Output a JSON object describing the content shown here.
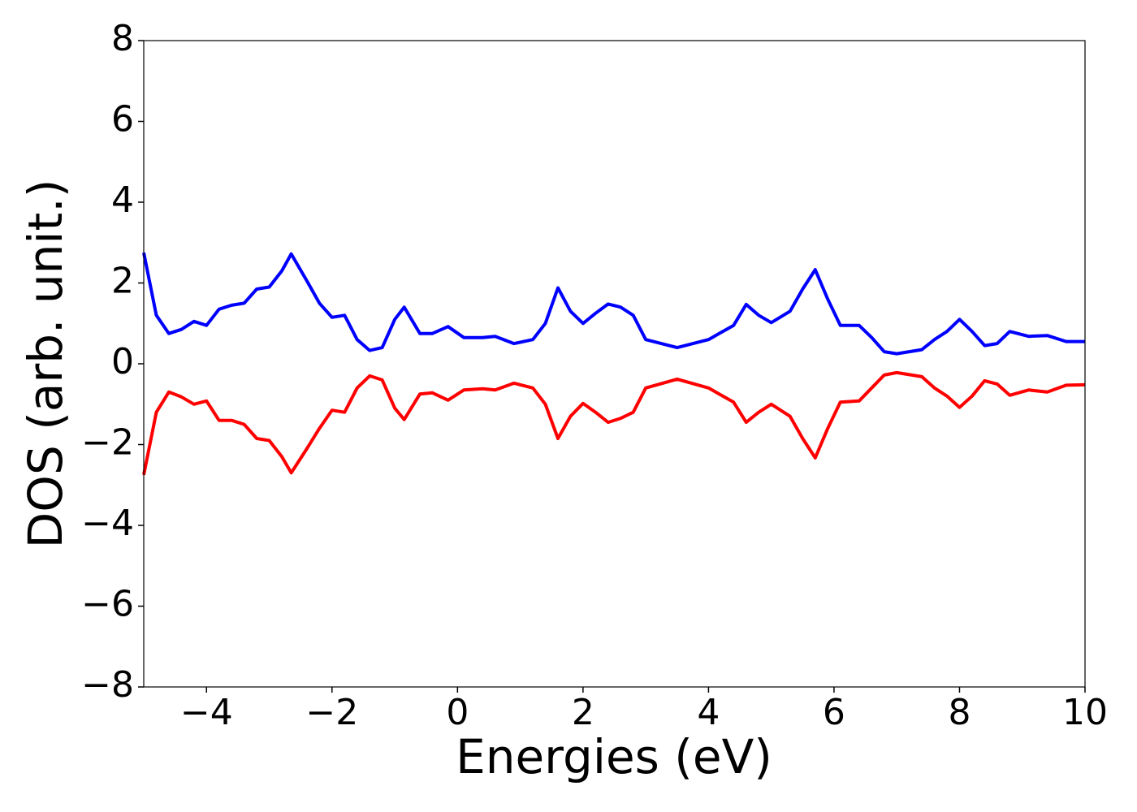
{
  "chart_data": {
    "type": "line",
    "x_label": "Energies (eV)",
    "y_label": "DOS (arb. unit.)",
    "xlim": [
      -5,
      10
    ],
    "ylim": [
      -8,
      8
    ],
    "xticks": [
      {
        "value": -4,
        "label": "−4"
      },
      {
        "value": -2,
        "label": "−2"
      },
      0,
      2,
      4,
      6,
      8,
      10
    ],
    "yticks": [
      {
        "value": -8,
        "label": "−8"
      },
      {
        "value": -6,
        "label": "−6"
      },
      {
        "value": -4,
        "label": "−4"
      },
      {
        "value": -2,
        "label": "−2"
      },
      0,
      2,
      4,
      6,
      8
    ],
    "x": [
      -5,
      -4.8,
      -4.6,
      -4.4,
      -4.2,
      -4.0,
      -3.8,
      -3.6,
      -3.4,
      -3.2,
      -3.0,
      -2.8,
      -2.65,
      -2.4,
      -2.2,
      -2.0,
      -1.8,
      -1.6,
      -1.4,
      -1.2,
      -1.0,
      -0.85,
      -0.6,
      -0.4,
      -0.15,
      0.1,
      0.4,
      0.6,
      0.9,
      1.2,
      1.4,
      1.6,
      1.8,
      2.0,
      2.2,
      2.4,
      2.6,
      2.8,
      3.0,
      3.5,
      4.0,
      4.4,
      4.6,
      4.8,
      5.0,
      5.3,
      5.5,
      5.7,
      5.9,
      6.1,
      6.4,
      6.6,
      6.8,
      7.0,
      7.4,
      7.6,
      7.8,
      8.0,
      8.2,
      8.4,
      8.6,
      8.8,
      9.1,
      9.4,
      9.7,
      10.0
    ],
    "series": [
      {
        "color": "#0000ff",
        "values": [
          2.75,
          1.2,
          0.75,
          0.85,
          1.05,
          0.95,
          1.35,
          1.45,
          1.5,
          1.85,
          1.9,
          2.3,
          2.72,
          2.05,
          1.5,
          1.15,
          1.2,
          0.6,
          0.33,
          0.4,
          1.1,
          1.4,
          0.75,
          0.75,
          0.92,
          0.65,
          0.65,
          0.68,
          0.5,
          0.6,
          1.0,
          1.88,
          1.3,
          1.0,
          1.25,
          1.48,
          1.4,
          1.2,
          0.6,
          0.4,
          0.6,
          0.95,
          1.47,
          1.2,
          1.02,
          1.3,
          1.85,
          2.33,
          1.6,
          0.95,
          0.95,
          0.65,
          0.3,
          0.25,
          0.35,
          0.6,
          0.8,
          1.1,
          0.8,
          0.45,
          0.5,
          0.8,
          0.68,
          0.7,
          0.55,
          0.55
        ]
      },
      {
        "color": "#ff0000",
        "values": [
          -2.75,
          -1.2,
          -0.7,
          -0.82,
          -1.0,
          -0.92,
          -1.4,
          -1.4,
          -1.5,
          -1.85,
          -1.9,
          -2.3,
          -2.7,
          -2.1,
          -1.6,
          -1.15,
          -1.2,
          -0.6,
          -0.3,
          -0.4,
          -1.1,
          -1.38,
          -0.75,
          -0.72,
          -0.9,
          -0.65,
          -0.62,
          -0.65,
          -0.48,
          -0.6,
          -1.0,
          -1.85,
          -1.3,
          -0.98,
          -1.2,
          -1.45,
          -1.35,
          -1.2,
          -0.6,
          -0.38,
          -0.6,
          -0.95,
          -1.45,
          -1.2,
          -1.0,
          -1.3,
          -1.85,
          -2.33,
          -1.6,
          -0.95,
          -0.92,
          -0.6,
          -0.28,
          -0.22,
          -0.32,
          -0.6,
          -0.8,
          -1.08,
          -0.8,
          -0.42,
          -0.5,
          -0.78,
          -0.65,
          -0.7,
          -0.53,
          -0.52
        ]
      }
    ]
  }
}
